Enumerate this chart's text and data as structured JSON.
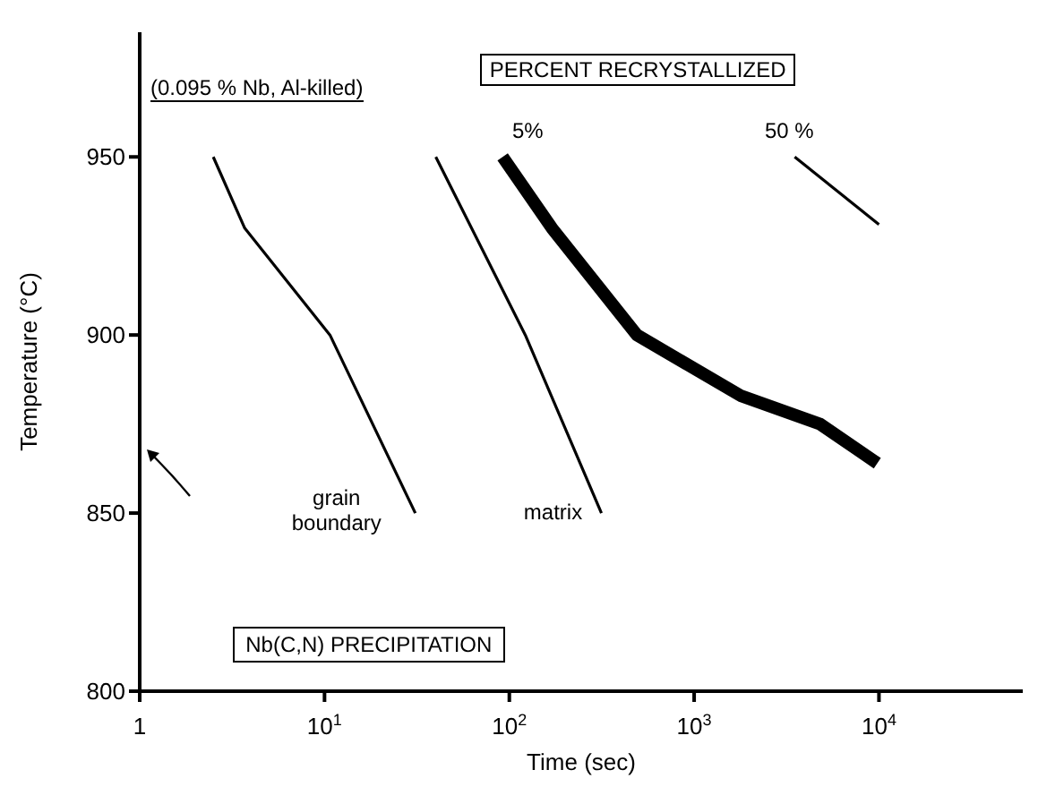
{
  "chart_data": {
    "type": "line",
    "xlabel": "Time  (sec)",
    "ylabel": "Temperature  (°C)",
    "log": "x",
    "xlim": [
      1,
      60000
    ],
    "ylim": [
      800,
      985
    ],
    "xticks": [
      1,
      {
        "value": 10,
        "label": "10$^{1}$"
      },
      {
        "value": 100,
        "label": "10$^{2}$"
      },
      {
        "value": 1000,
        "label": "10$^{3}$"
      },
      {
        "value": 10000,
        "label": "10$^{4}$"
      }
    ],
    "yticks": [
      800,
      850,
      900,
      950
    ],
    "marker": "none",
    "line_style": "solid",
    "series": [
      {
        "name": "grain boundary",
        "color": "#000000",
        "x": [
          2.5,
          3.7,
          10.7,
          31
        ],
        "values": [
          950,
          930,
          900,
          850
        ]
      },
      {
        "name": "matrix",
        "color": "#000000",
        "x": [
          40,
          122,
          315
        ],
        "values": [
          950,
          900,
          850
        ]
      },
      {
        "name": "5%",
        "color": "#000000",
        "x": [
          92,
          170,
          490,
          1780,
          4800,
          9800
        ],
        "values": [
          950,
          930,
          900,
          883,
          875,
          864
        ]
      },
      {
        "name": "50 %",
        "color": "#000000",
        "x": [
          3500,
          10000
        ],
        "values": [
          950,
          931
        ]
      }
    ],
    "annotations": [
      "(0.095 % Nb, Al-killed)",
      "PERCENT RECRYSTALLIZED",
      "Nb(C,N) PRECIPITATION"
    ]
  }
}
